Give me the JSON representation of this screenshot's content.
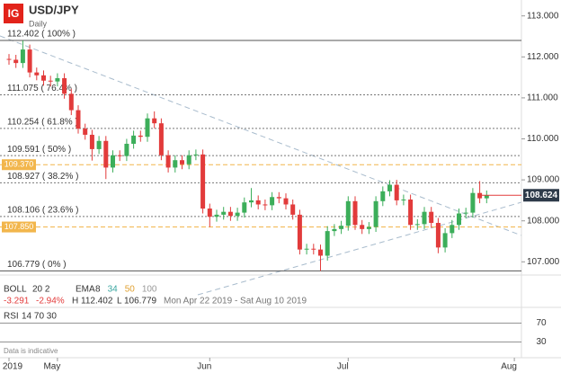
{
  "chart_data": {
    "type": "candlestick",
    "logo": "IG",
    "title": "USD/JPY",
    "subtitle": "Daily",
    "up_color": "#3cae5a",
    "down_color": "#e23b3b",
    "categories": [
      "2019",
      null,
      null,
      null,
      null,
      null,
      null,
      "May",
      null,
      null,
      null,
      null,
      null,
      null,
      null,
      null,
      null,
      null,
      null,
      null,
      null,
      null,
      null,
      null,
      null,
      null,
      null,
      null,
      null,
      "Jun",
      null,
      null,
      null,
      null,
      null,
      null,
      null,
      null,
      null,
      null,
      null,
      null,
      null,
      null,
      null,
      null,
      null,
      null,
      null,
      "Jul",
      null,
      null,
      null,
      null,
      null,
      null,
      null,
      null,
      null,
      null,
      null,
      null,
      null,
      null,
      null,
      null,
      null,
      null,
      null,
      null,
      null,
      null,
      null,
      "Aug"
    ],
    "open": [
      111.95,
      111.93,
      111.85,
      112.18,
      111.62,
      111.55,
      111.42,
      111.4,
      111.48,
      111.1,
      110.7,
      110.25,
      110.1,
      109.75,
      109.95,
      109.3,
      109.6,
      109.58,
      109.88,
      110.08,
      110.05,
      110.5,
      110.38,
      109.6,
      109.3,
      109.48,
      109.38,
      109.6,
      109.62,
      108.3,
      108.1,
      108.15,
      108.22,
      108.12,
      108.2,
      108.45,
      108.5,
      108.4,
      108.38,
      108.58,
      108.55,
      108.4,
      108.15,
      107.3,
      107.32,
      107.3,
      107.15,
      107.75,
      107.8,
      107.88,
      108.48,
      107.9,
      107.8,
      107.85,
      108.48,
      108.72,
      108.88,
      108.5,
      108.52,
      107.9,
      107.92,
      108.22,
      107.95,
      107.35,
      107.7,
      107.9,
      108.18,
      108.2,
      108.68,
      108.55,
      null,
      null,
      null,
      null
    ],
    "high": [
      112.07,
      112.05,
      112.4,
      112.3,
      111.74,
      111.67,
      111.54,
      111.6,
      111.6,
      111.22,
      110.82,
      110.37,
      110.22,
      110.07,
      110.07,
      109.72,
      109.72,
      110.0,
      110.2,
      110.2,
      110.62,
      110.67,
      110.5,
      109.72,
      109.6,
      109.6,
      109.72,
      109.74,
      109.74,
      108.42,
      108.27,
      108.34,
      108.34,
      108.32,
      108.57,
      108.8,
      108.62,
      108.52,
      108.7,
      108.7,
      108.67,
      108.52,
      108.27,
      107.44,
      107.44,
      107.42,
      107.87,
      107.92,
      108.0,
      108.6,
      108.6,
      108.02,
      107.97,
      108.6,
      108.84,
      108.99,
      109.0,
      108.64,
      108.64,
      108.04,
      108.34,
      108.34,
      108.07,
      107.82,
      108.02,
      108.3,
      108.32,
      108.8,
      108.97,
      108.74,
      null,
      null,
      null,
      null
    ],
    "low": [
      111.81,
      111.73,
      111.73,
      111.5,
      111.43,
      111.3,
      111.28,
      111.28,
      110.98,
      110.58,
      110.13,
      109.98,
      109.47,
      109.63,
      109.02,
      109.18,
      109.46,
      109.46,
      109.76,
      109.93,
      109.93,
      110.26,
      109.48,
      109.18,
      109.18,
      109.26,
      109.26,
      109.48,
      108.18,
      107.85,
      107.98,
      108.03,
      108.0,
      108.0,
      108.08,
      108.33,
      108.28,
      108.26,
      108.26,
      108.43,
      108.28,
      108.03,
      107.18,
      107.18,
      107.18,
      106.78,
      107.03,
      107.63,
      107.68,
      107.76,
      107.78,
      107.68,
      107.68,
      107.73,
      108.36,
      108.6,
      108.38,
      108.38,
      107.78,
      107.78,
      107.8,
      107.83,
      107.21,
      107.23,
      107.58,
      107.78,
      108.06,
      108.08,
      108.43,
      108.43,
      null,
      null,
      null,
      null
    ],
    "close": [
      111.93,
      111.85,
      112.18,
      111.62,
      111.55,
      111.42,
      111.4,
      111.48,
      111.1,
      110.7,
      110.25,
      110.1,
      109.75,
      109.95,
      109.3,
      109.6,
      109.58,
      109.88,
      110.08,
      110.05,
      110.5,
      110.38,
      109.6,
      109.3,
      109.48,
      109.38,
      109.6,
      109.62,
      108.3,
      108.1,
      108.15,
      108.22,
      108.12,
      108.2,
      108.45,
      108.5,
      108.4,
      108.38,
      108.58,
      108.55,
      108.4,
      108.15,
      107.3,
      107.32,
      107.3,
      107.15,
      107.75,
      107.8,
      107.88,
      108.48,
      107.9,
      107.8,
      107.85,
      108.48,
      108.72,
      108.88,
      108.5,
      108.52,
      107.9,
      107.92,
      108.22,
      107.95,
      107.35,
      107.7,
      107.9,
      108.18,
      108.2,
      108.68,
      108.55,
      108.62,
      null,
      null,
      null,
      null
    ],
    "ylim": [
      106.7,
      113.3
    ],
    "yticks": [
      {
        "value": 113,
        "label": "113.000"
      },
      {
        "value": 112,
        "label": "112.000"
      },
      {
        "value": 111,
        "label": "111.000"
      },
      {
        "value": 110,
        "label": "110.000"
      },
      {
        "value": 109,
        "label": "109.000"
      },
      {
        "value": 108,
        "label": "108.000"
      },
      {
        "value": 107,
        "label": "107.000"
      }
    ],
    "fib_levels": [
      {
        "value": 112.402,
        "label": "112.402 ( 100% )"
      },
      {
        "value": 111.075,
        "label": "111.075 ( 76.4% )"
      },
      {
        "value": 110.254,
        "label": "110.254 ( 61.8% )"
      },
      {
        "value": 109.591,
        "label": "109.591 ( 50% )"
      },
      {
        "value": 108.927,
        "label": "108.927 ( 38.2% )"
      },
      {
        "value": 108.106,
        "label": "108.106 ( 23.6% )"
      },
      {
        "value": 106.779,
        "label": "106.779 ( 0% )"
      }
    ],
    "price_labels": [
      {
        "value": 109.37,
        "label": "109.370",
        "color": "#f2b64c"
      },
      {
        "value": 107.85,
        "label": "107.850",
        "color": "#f2b64c"
      }
    ],
    "current_price": {
      "value": 108.624,
      "label": "108.624",
      "color": "#2e3b4a"
    },
    "info": {
      "boll": "BOLL",
      "boll_params": "20  2",
      "ema": "EMA",
      "ema_params": [
        {
          "text": "8",
          "color": "#333333"
        },
        {
          "text": "34",
          "color": "#3aa6a0"
        },
        {
          "text": "50",
          "color": "#e0a030"
        },
        {
          "text": "100",
          "color": "#9a9a9a"
        }
      ],
      "change": "-3.291",
      "change_pct": "-2.94%",
      "high": "H 112.402",
      "low": "L 106.779",
      "range": "Mon Apr 22 2019 - Sat Aug 10 2019"
    },
    "rsi": {
      "label": "RSI",
      "params": "14  70  30",
      "ylim": [
        0,
        100
      ],
      "yticks": [
        70,
        30
      ]
    },
    "note": "Data is indicative"
  }
}
